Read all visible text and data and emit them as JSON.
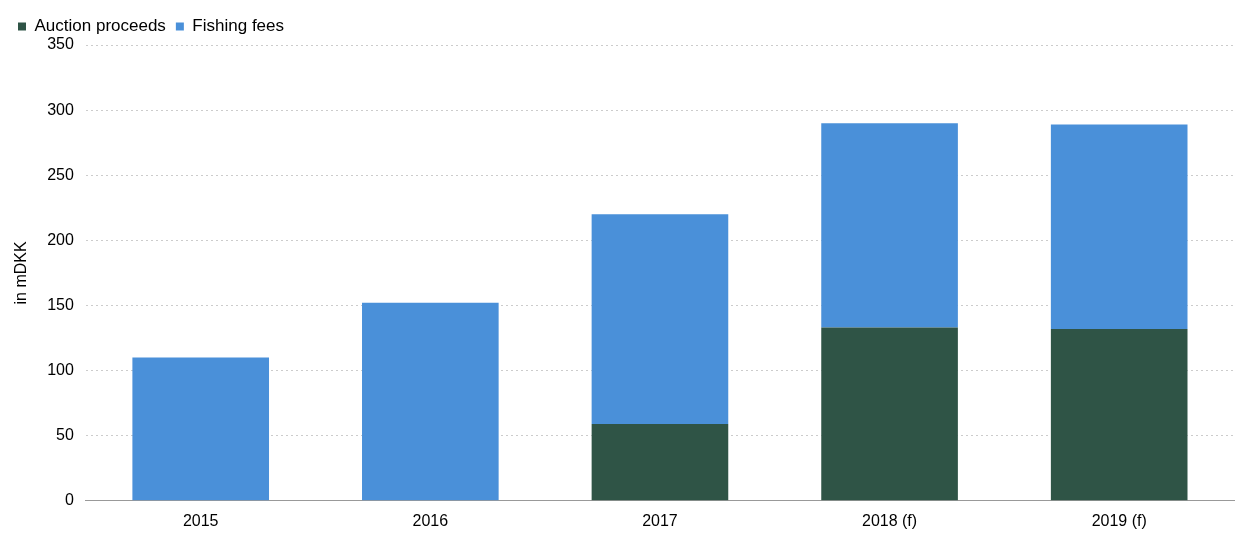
{
  "chart_data": {
    "type": "bar",
    "ylabel": "in mDKK",
    "categories": [
      "2015",
      "2016",
      "2017",
      "2018 (f)",
      "2019 (f)"
    ],
    "series": [
      {
        "name": "Auction proceeds",
        "color": "#2f5446",
        "values": [
          0,
          0,
          59,
          133,
          132
        ]
      },
      {
        "name": "Fishing fees",
        "color": "#4a90d9",
        "values": [
          110,
          152,
          161,
          157,
          157
        ]
      }
    ],
    "stacked": true,
    "ylim": [
      0,
      350
    ],
    "yticks": [
      0,
      50,
      100,
      150,
      200,
      250,
      300,
      350
    ],
    "grid": "y",
    "legend": "top left"
  }
}
